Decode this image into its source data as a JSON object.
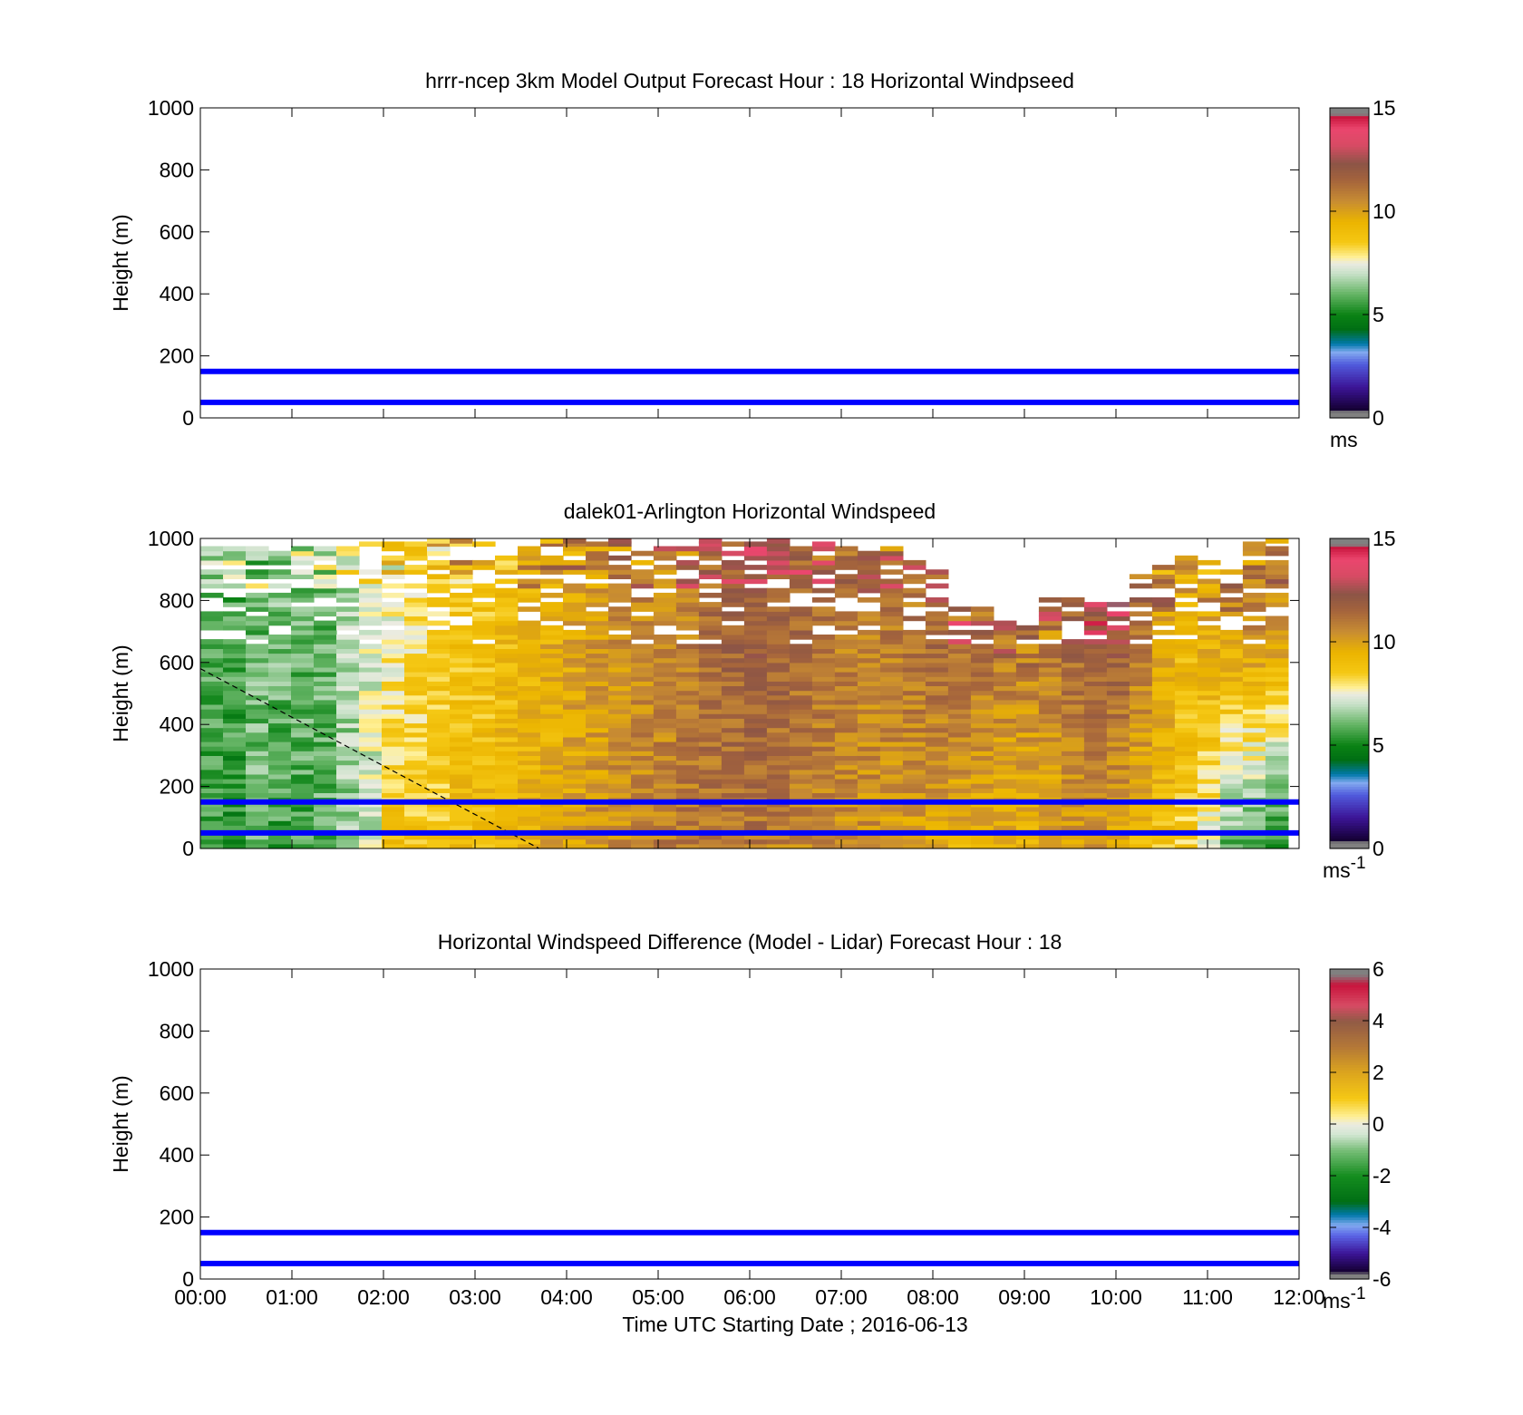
{
  "chart_data": [
    {
      "type": "heatmap",
      "title": "hrrr-ncep 3km Model Output   Forecast Hour : 18 Horizontal Windpseed",
      "xlabel": "",
      "ylabel": "Height (m)",
      "xlim": [
        0,
        12
      ],
      "ylim": [
        0,
        1000
      ],
      "x_ticks": [
        0,
        1,
        2,
        3,
        4,
        5,
        6,
        7,
        8,
        9,
        10,
        11,
        12
      ],
      "x_tick_labels_shown": false,
      "y_ticks": [
        0,
        200,
        400,
        600,
        800,
        1000
      ],
      "y_tick_labels": [
        "0",
        "200",
        "400",
        "600",
        "800",
        "1000"
      ],
      "reference_lines_m": [
        50,
        150
      ],
      "reference_line_color": "#0000ff",
      "colorbar": {
        "min": 0,
        "max": 15,
        "ticks": [
          "0",
          "5",
          "10",
          "15"
        ],
        "unit": "ms",
        "unit_sup": ""
      },
      "grid": false,
      "field": "empty"
    },
    {
      "type": "heatmap",
      "title": "dalek01-Arlington  Horizontal Windspeed",
      "xlabel": "",
      "ylabel": "Height (m)",
      "xlim": [
        0,
        12
      ],
      "ylim": [
        0,
        1000
      ],
      "x_ticks": [
        0,
        1,
        2,
        3,
        4,
        5,
        6,
        7,
        8,
        9,
        10,
        11,
        12
      ],
      "x_tick_labels_shown": false,
      "y_ticks": [
        0,
        200,
        400,
        600,
        800,
        1000
      ],
      "y_tick_labels": [
        "0",
        "200",
        "400",
        "600",
        "800",
        "1000"
      ],
      "reference_lines_m": [
        50,
        150
      ],
      "reference_line_color": "#0000ff",
      "colorbar": {
        "min": 0,
        "max": 15,
        "ticks": [
          "0",
          "5",
          "10",
          "15"
        ],
        "unit": "ms",
        "unit_sup": "-1"
      },
      "grid": false,
      "dashed_line": {
        "from": [
          0,
          580
        ],
        "to": [
          3.7,
          0
        ]
      },
      "field": "windspeed",
      "data_top_m": [
        975,
        975,
        975,
        975,
        975,
        975,
        975,
        1000,
        1000,
        985,
        1000,
        1000,
        990,
        940,
        975,
        1000,
        995,
        990,
        995,
        975,
        990,
        980,
        995,
        1000,
        990,
        995,
        985,
        990,
        975,
        965,
        975,
        920,
        900,
        780,
        770,
        730,
        715,
        800,
        800,
        790,
        800,
        880,
        905,
        960,
        920,
        905,
        990,
        1000
      ],
      "mean_speed_low_ms": [
        5.6,
        5.2,
        6.2,
        5.5,
        5.8,
        6.0,
        6.5,
        7.0,
        9.0,
        8.8,
        8.7,
        9.1,
        9.2,
        9.4,
        9.5,
        9.7,
        10.0,
        10.3,
        10.5,
        10.6,
        10.8,
        11.0,
        11.1,
        11.1,
        11.0,
        10.8,
        10.6,
        10.5,
        10.4,
        10.3,
        10.1,
        10.0,
        9.8,
        9.6,
        9.5,
        9.4,
        9.3,
        9.6,
        10.0,
        10.0,
        9.7,
        9.2,
        8.8,
        8.5,
        7.5,
        6.0,
        5.5,
        5.0
      ],
      "mean_speed_high_ms": [
        5.7,
        5.8,
        6.0,
        6.2,
        6.0,
        6.0,
        6.7,
        7.5,
        7.6,
        8.0,
        8.5,
        8.7,
        8.8,
        9.0,
        9.4,
        9.6,
        9.8,
        10.1,
        10.4,
        10.6,
        10.6,
        10.8,
        11.3,
        11.6,
        11.9,
        11.7,
        11.4,
        11.2,
        10.8,
        10.9,
        11.0,
        11.3,
        11.5,
        11.5,
        11.3,
        11.1,
        11.0,
        11.1,
        11.6,
        12.1,
        12.0,
        11.2,
        10.2,
        9.3,
        9.8,
        10.1,
        10.5,
        10.4
      ]
    },
    {
      "type": "heatmap",
      "title": "Horizontal Windspeed Difference (Model - Lidar) Forecast Hour : 18",
      "xlabel": "Time UTC  Starting Date ; 2016-06-13",
      "ylabel": "Height (m)",
      "xlim": [
        0,
        12
      ],
      "ylim": [
        0,
        1000
      ],
      "x_ticks": [
        0,
        1,
        2,
        3,
        4,
        5,
        6,
        7,
        8,
        9,
        10,
        11,
        12
      ],
      "x_tick_labels": [
        "00:00",
        "01:00",
        "02:00",
        "03:00",
        "04:00",
        "05:00",
        "06:00",
        "07:00",
        "08:00",
        "09:00",
        "10:00",
        "11:00",
        "12:00"
      ],
      "x_tick_labels_shown": true,
      "y_ticks": [
        0,
        200,
        400,
        600,
        800,
        1000
      ],
      "y_tick_labels": [
        "0",
        "200",
        "400",
        "600",
        "800",
        "1000"
      ],
      "reference_lines_m": [
        50,
        150
      ],
      "reference_line_color": "#0000ff",
      "colorbar": {
        "min": -6,
        "max": 6,
        "ticks": [
          "-6",
          "-4",
          "-2",
          "0",
          "2",
          "4",
          "6"
        ],
        "unit": "ms",
        "unit_sup": "-1"
      },
      "grid": false,
      "field": "empty"
    }
  ]
}
